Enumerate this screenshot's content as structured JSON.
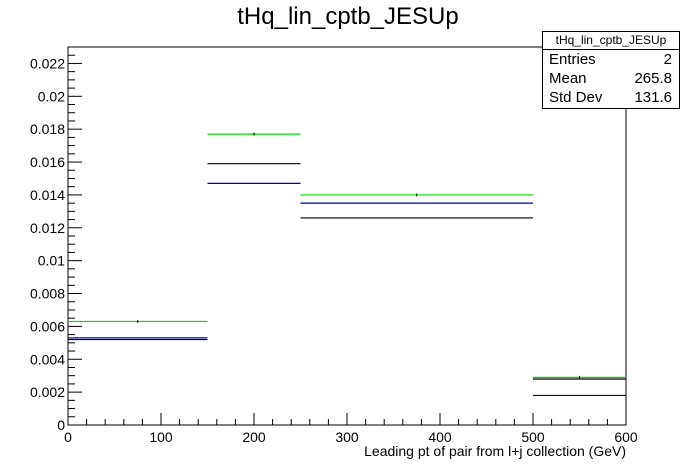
{
  "chart_data": {
    "type": "histogram",
    "title": "tHq_lin_cptb_JESUp",
    "xlabel": "Leading pt of pair from l+j collection (GeV)",
    "ylabel": "",
    "xlim": [
      0,
      600
    ],
    "ylim": [
      0,
      0.023
    ],
    "x_ticks": [
      0,
      100,
      200,
      300,
      400,
      500,
      600
    ],
    "y_ticks": [
      0,
      0.002,
      0.004,
      0.006,
      0.008,
      0.01,
      0.012,
      0.014,
      0.016,
      0.018,
      0.02,
      0.022
    ],
    "bin_edges": [
      0,
      150,
      250,
      500,
      600
    ],
    "grid": false,
    "series": [
      {
        "color": "#00dd00",
        "values": [
          0.0063,
          0.0177,
          0.014,
          0.0029
        ]
      },
      {
        "color": "#000000",
        "values": [
          0.0052,
          0.0159,
          0.0126,
          0.0028
        ]
      },
      {
        "color": "#0000aa",
        "values": [
          0.0053,
          0.0147,
          0.0135,
          0.0018
        ]
      }
    ],
    "stats": {
      "name": "tHq_lin_cptb_JESUp",
      "rows": [
        {
          "label": "Entries",
          "value": "2"
        },
        {
          "label": "Mean",
          "value": "265.8"
        },
        {
          "label": "Std Dev",
          "value": "131.6"
        }
      ]
    }
  }
}
